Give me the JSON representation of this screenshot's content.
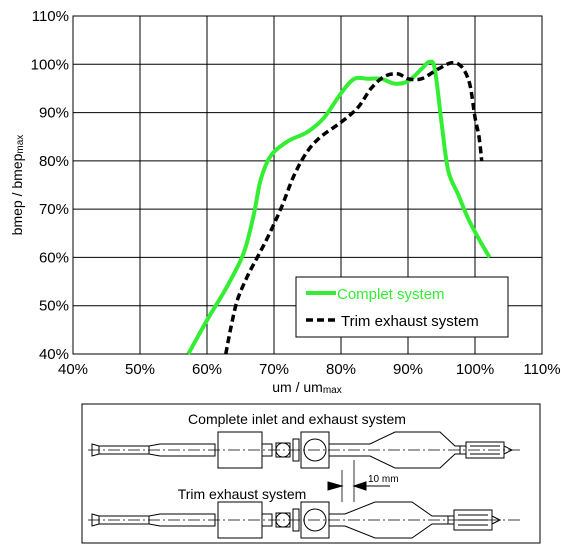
{
  "chart_data": {
    "type": "line",
    "xlabel": "um / um",
    "xlabel_sub": "max",
    "ylabel": "bmep / bmep",
    "ylabel_sub": "max",
    "xlim": [
      40,
      110
    ],
    "ylim": [
      40,
      110
    ],
    "xticks": [
      "40%",
      "50%",
      "60%",
      "70%",
      "80%",
      "90%",
      "100%",
      "110%"
    ],
    "yticks": [
      "40%",
      "50%",
      "60%",
      "70%",
      "80%",
      "90%",
      "100%",
      "110%"
    ],
    "grid": true,
    "legend_position": "bottom-right",
    "series": [
      {
        "name": "Complet system",
        "color": "#33ee33",
        "style": "solid",
        "points": [
          [
            57.2,
            40
          ],
          [
            60,
            47
          ],
          [
            63,
            54
          ],
          [
            65.5,
            61
          ],
          [
            67,
            69
          ],
          [
            68,
            76
          ],
          [
            69.5,
            81
          ],
          [
            72,
            84
          ],
          [
            75,
            86
          ],
          [
            77.5,
            89
          ],
          [
            80,
            94
          ],
          [
            82,
            97
          ],
          [
            84,
            97
          ],
          [
            86,
            97
          ],
          [
            88,
            96
          ],
          [
            90,
            96.5
          ],
          [
            92,
            99
          ],
          [
            93.2,
            100.5
          ],
          [
            94,
            99
          ],
          [
            95,
            88
          ],
          [
            96,
            78
          ],
          [
            97.5,
            73
          ],
          [
            99,
            68
          ],
          [
            100.5,
            64
          ],
          [
            102.2,
            60
          ]
        ]
      },
      {
        "name": "Trim exhaust system",
        "color": "#000000",
        "style": "dashed",
        "points": [
          [
            62.8,
            40
          ],
          [
            63.5,
            45
          ],
          [
            64.5,
            51
          ],
          [
            66,
            56
          ],
          [
            67.5,
            60
          ],
          [
            69,
            64
          ],
          [
            71,
            70
          ],
          [
            73,
            77
          ],
          [
            75,
            82
          ],
          [
            77,
            85
          ],
          [
            80,
            88
          ],
          [
            82.5,
            91
          ],
          [
            84.5,
            95
          ],
          [
            86.5,
            97.5
          ],
          [
            88.5,
            98
          ],
          [
            90,
            97
          ],
          [
            92,
            97
          ],
          [
            94.5,
            99
          ],
          [
            96.5,
            100.3
          ],
          [
            98,
            99.5
          ],
          [
            99.2,
            96
          ],
          [
            100,
            89
          ],
          [
            100.6,
            85
          ],
          [
            101,
            80
          ]
        ]
      }
    ]
  },
  "diagram": {
    "top_label": "Complete inlet and exhaust system",
    "bottom_label": "Trim exhaust system",
    "dimension_label": "10 mm"
  }
}
